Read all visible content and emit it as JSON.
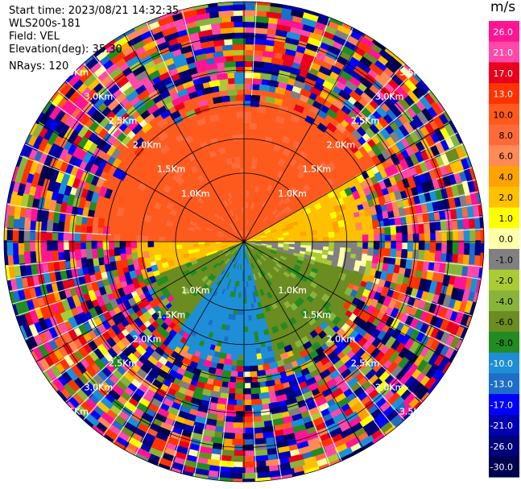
{
  "info": {
    "start_time": "Start time: 2023/08/21 14:32:35",
    "instrument": "WLS200s-181",
    "field": "Field: VEL",
    "elevation": "Elevation(deg): 35.30",
    "nrays": "NRays: 120"
  },
  "chart_data": {
    "type": "heatmap",
    "projection": "polar-ppi",
    "title": "",
    "field": "VEL",
    "unit": "m/s",
    "rays": 120,
    "range_rings": [
      {
        "range_km": 1.0,
        "label": "1.0Km"
      },
      {
        "range_km": 1.5,
        "label": "1.5Km"
      },
      {
        "range_km": 2.0,
        "label": "2.0Km"
      },
      {
        "range_km": 2.5,
        "label": "2.5Km"
      },
      {
        "range_km": 3.0,
        "label": "3.0Km"
      },
      {
        "range_km": 3.5,
        "label": "3.5Km"
      }
    ],
    "max_range_km": 3.5,
    "velocity_field_description_sectors": [
      {
        "azimuth_start": 270,
        "azimuth_end": 60,
        "max_range_km": 2.2,
        "value": 11
      },
      {
        "azimuth_start": 60,
        "azimuth_end": 90,
        "max_range_km": 1.9,
        "value": 3
      },
      {
        "azimuth_start": 90,
        "azimuth_end": 105,
        "max_range_km": 1.9,
        "value": -0.5
      },
      {
        "azimuth_start": 105,
        "azimuth_end": 165,
        "max_range_km": 1.9,
        "value": -5
      },
      {
        "azimuth_start": 165,
        "azimuth_end": 215,
        "max_range_km": 1.8,
        "value": -9
      },
      {
        "azimuth_start": 215,
        "azimuth_end": 250,
        "max_range_km": 1.6,
        "value": -5
      },
      {
        "azimuth_start": 250,
        "azimuth_end": 270,
        "max_range_km": 1.6,
        "value": 3
      }
    ],
    "colorbar": {
      "ticks": [
        "26.0",
        "21.0",
        "17.0",
        "13.0",
        "10.0",
        "8.0",
        "6.0",
        "4.0",
        "2.0",
        "1.0",
        "0.0",
        "-1.0",
        "-2.0",
        "-4.0",
        "-6.0",
        "-8.0",
        "-10.0",
        "-13.0",
        "-17.0",
        "-21.0",
        "-26.0",
        "-30.0"
      ],
      "bins": [
        {
          "min": 26,
          "max": 30,
          "color": "#ff1493"
        },
        {
          "min": 21,
          "max": 26,
          "color": "#ff49a8"
        },
        {
          "min": 17,
          "max": 21,
          "color": "#e8001c"
        },
        {
          "min": 13,
          "max": 17,
          "color": "#ff3300"
        },
        {
          "min": 10,
          "max": 13,
          "color": "#ff5a1e"
        },
        {
          "min": 8,
          "max": 10,
          "color": "#ff6a3a"
        },
        {
          "min": 6,
          "max": 8,
          "color": "#ff8a55"
        },
        {
          "min": 4,
          "max": 6,
          "color": "#ffa300"
        },
        {
          "min": 2,
          "max": 4,
          "color": "#ffc000"
        },
        {
          "min": 1,
          "max": 2,
          "color": "#ffff00"
        },
        {
          "min": 0,
          "max": 1,
          "color": "#ffffaa"
        },
        {
          "min": -1,
          "max": 0,
          "color": "#808080"
        },
        {
          "min": -2,
          "max": -1,
          "color": "#aacc33"
        },
        {
          "min": -4,
          "max": -2,
          "color": "#88b43c"
        },
        {
          "min": -6,
          "max": -4,
          "color": "#6a8c21"
        },
        {
          "min": -8,
          "max": -6,
          "color": "#228b22"
        },
        {
          "min": -10,
          "max": -8,
          "color": "#1e8fd6"
        },
        {
          "min": -13,
          "max": -10,
          "color": "#1c6ec8"
        },
        {
          "min": -17,
          "max": -13,
          "color": "#0000ff"
        },
        {
          "min": -21,
          "max": -17,
          "color": "#0000b3"
        },
        {
          "min": -26,
          "max": -21,
          "color": "#00007a"
        },
        {
          "min": -30,
          "max": -26,
          "color": "#000050"
        }
      ]
    }
  }
}
